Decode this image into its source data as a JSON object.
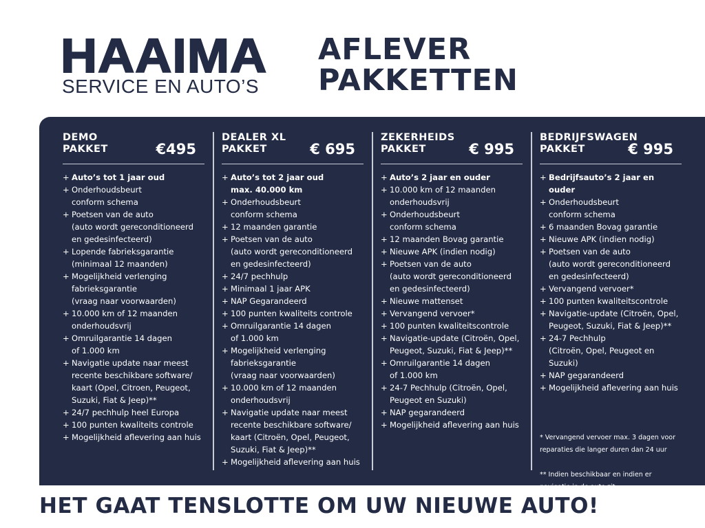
{
  "logo": {
    "name": "HAAIMA",
    "tagline": "SERVICE EN AUTO’S"
  },
  "title": {
    "line1": "AFLEVER",
    "line2": "PAKKETTEN"
  },
  "packages": [
    {
      "name1": "DEMO",
      "name2": "PAKKET",
      "price": "€495",
      "items": [
        "Auto’s tot 1 jaar oud",
        "Onderhoudsbeurt\nconform schema",
        "Poetsen van de auto\n(auto wordt gereconditioneerd\nen gedesinfecteerd)",
        "Lopende fabrieksgarantie\n(minimaal 12 maanden)",
        "Mogelijkheid verlenging\nfabrieksgarantie\n(vraag naar voorwaarden)",
        "10.000 km of 12 maanden\nonderhoudsvrij",
        "Omruilgarantie 14 dagen\nof 1.000 km",
        "Navigatie update naar meest\nrecente beschikbare software/\nkaart (Opel, Citroen,  Peugeot,\nSuzuki, Fiat & Jeep)**",
        "24/7 pechhulp heel Europa",
        "100 punten kwaliteits controle",
        "Mogelijkheid aflevering aan huis"
      ]
    },
    {
      "name1": "DEALER XL",
      "name2": "PAKKET",
      "price": "€ 695",
      "items": [
        "Auto’s tot 2 jaar oud\nmax. 40.000 km",
        "Onderhoudsbeurt\nconform schema",
        "12 maanden garantie",
        "Poetsen van de auto\n(auto wordt gereconditioneerd\nen gedesinfecteerd)",
        "24/7 pechhulp",
        "Minimaal 1 jaar APK",
        "NAP Gegarandeerd",
        "100 punten kwaliteits controle",
        "Omruilgarantie 14 dagen\nof 1.000 km",
        "Mogelijkheid verlenging\nfabrieksgarantie\n(vraag naar voorwaarden)",
        "10.000 km of 12 maanden\nonderhoudsvrij",
        "Navigatie update naar meest\nrecente beschikbare software/\nkaart (Citroën, Opel, Peugeot,\nSuzuki, Fiat & Jeep)**",
        "Mogelijkheid aflevering aan huis"
      ]
    },
    {
      "name1": "ZEKERHEIDS",
      "name2": "PAKKET",
      "price": "€ 995",
      "items": [
        "Auto’s 2 jaar en ouder",
        "10.000 km of 12 maanden\nonderhoudsvrij",
        "Onderhoudsbeurt\nconform schema",
        "12 maanden Bovag garantie",
        "Nieuwe APK (indien nodig)",
        "Poetsen van de auto\n(auto wordt gereconditioneerd\nen gedesinfecteerd)",
        "Nieuwe mattenset",
        "Vervangend vervoer*",
        "100 punten kwaliteitscontrole",
        "Navigatie-update (Citroën, Opel,\nPeugeot, Suzuki, Fiat & Jeep)**",
        "Omruilgarantie 14 dagen\nof 1.000 km",
        "24-7 Pechhulp (Citroën, Opel,\nPeugeot en Suzuki)",
        "NAP gegarandeerd",
        "Mogelijkheid aflevering aan huis"
      ]
    },
    {
      "name1": "BEDRIJFSWAGEN",
      "name2": "PAKKET",
      "price": "€ 995",
      "items": [
        "Bedrijfsauto’s 2 jaar en ouder",
        "Onderhoudsbeurt\nconform schema",
        "6 maanden Bovag garantie",
        "Nieuwe APK (indien nodig)",
        "Poetsen van de auto\n(auto wordt gereconditioneerd\nen gedesinfecteerd)",
        "Vervangend vervoer*",
        "100 punten kwaliteitscontrole",
        "Navigatie-update (Citroën, Opel,\nPeugeot, Suzuki, Fiat & Jeep)**",
        "24-7 Pechhulp\n(Citroën, Opel, Peugeot en Suzuki)",
        "NAP gegarandeerd",
        "Mogelijkheid aflevering aan huis"
      ]
    }
  ],
  "bullet": "+",
  "footnotes": {
    "note1": "* Vervangend vervoer max. 3 dagen voor\n   reparaties die langer duren dan 24 uur",
    "note2": "** Indien beschikbaar en indien er\n     navigatie in de auto zit."
  },
  "slogan": "HET GAAT TENSLOTTE OM UW NIEUWE AUTO!",
  "colors": {
    "navy": "#232b45",
    "text_light": "#ffffff"
  }
}
